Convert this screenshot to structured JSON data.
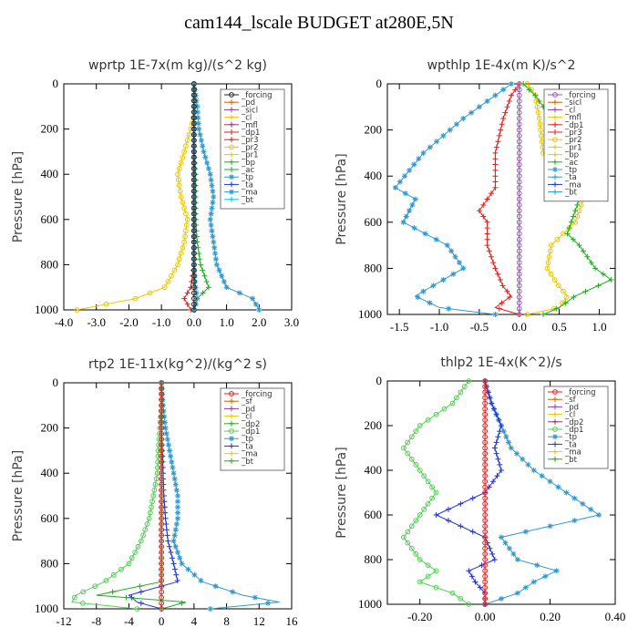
{
  "title": "cam144_lscale  BUDGET at280E,5N",
  "chart_data": [
    {
      "type": "line",
      "title": "wprtp   1E-7x(m kg)/(s^2 kg)",
      "ylabel": "Pressure [hPa]",
      "xlim": [
        -4,
        3
      ],
      "ylim": [
        1000,
        0
      ],
      "xticks": [
        "-4.0",
        "-3.0",
        "-2.0",
        "-1.0",
        "0.0",
        "1.0",
        "2.0",
        "3.0"
      ],
      "xtick_values": [
        -4,
        -3,
        -2,
        -1,
        0,
        1,
        2,
        3
      ],
      "yticks": [
        0,
        200,
        400,
        600,
        800,
        1000
      ],
      "legend_position": "top-right",
      "legend": [
        "_forcing",
        "_pd",
        "_sicl",
        "_cl",
        "_mfl",
        "_dp1",
        "_pr3",
        "_pr2",
        "_pr1",
        "_bp",
        "_ac",
        "_tp",
        "_ta",
        "_ma",
        "_bt"
      ],
      "series": [
        {
          "name": "_pr2",
          "color": "#e8c800",
          "marker": "circle",
          "x": [
            0,
            0.05,
            -0.1,
            -0.3,
            -0.5,
            -0.4,
            -0.2,
            -0.3,
            -0.5,
            -0.9,
            -1.8,
            -3.6
          ],
          "y": [
            0,
            100,
            200,
            300,
            400,
            500,
            600,
            700,
            800,
            900,
            950,
            1000
          ]
        },
        {
          "name": "_tp",
          "color": "#3399cc",
          "marker": "star",
          "x": [
            0,
            0.1,
            0.15,
            0.3,
            0.5,
            0.6,
            0.5,
            0.6,
            0.7,
            1.0,
            1.8,
            2.0
          ],
          "y": [
            0,
            100,
            200,
            300,
            400,
            500,
            600,
            700,
            800,
            900,
            950,
            1000
          ]
        },
        {
          "name": "_ac",
          "color": "#22aa22",
          "marker": "plus",
          "x": [
            0,
            0,
            0,
            0,
            0.05,
            0.05,
            0.05,
            0.1,
            0.2,
            0.45,
            0.1,
            0
          ],
          "y": [
            0,
            100,
            200,
            300,
            400,
            500,
            600,
            700,
            800,
            900,
            950,
            1000
          ]
        },
        {
          "name": "_dp1",
          "color": "#dd2222",
          "marker": "plus",
          "x": [
            0,
            0,
            0,
            0,
            0,
            0,
            0,
            0,
            0,
            -0.1,
            -0.3,
            -0.1
          ],
          "y": [
            0,
            100,
            200,
            300,
            400,
            500,
            600,
            700,
            800,
            900,
            950,
            1000
          ]
        },
        {
          "name": "_ma",
          "color": "#3399cc",
          "marker": "star",
          "x": [
            0,
            0,
            0,
            0,
            0,
            0,
            0,
            0,
            0,
            0.05,
            0.1,
            0
          ],
          "y": [
            0,
            100,
            200,
            300,
            400,
            500,
            600,
            700,
            800,
            900,
            950,
            1000
          ]
        },
        {
          "name": "_forcing",
          "color": "#222222",
          "marker": "circle",
          "x": [
            0,
            0,
            0,
            0,
            0,
            0,
            0,
            0,
            0,
            0,
            0,
            0
          ],
          "y": [
            0,
            100,
            200,
            300,
            400,
            500,
            600,
            700,
            800,
            900,
            950,
            1000
          ]
        }
      ]
    },
    {
      "type": "line",
      "title": "wpthlp   1E-4x(m K)/s^2",
      "ylabel": "Pressure [hPa]",
      "xlim": [
        -1.65,
        1.2
      ],
      "ylim": [
        1000,
        0
      ],
      "xticks": [
        "-1.5",
        "-1.0",
        "-0.5",
        "0.0",
        "0.5",
        "1.0"
      ],
      "xtick_values": [
        -1.5,
        -1.0,
        -0.5,
        0,
        0.5,
        1.0
      ],
      "yticks": [
        0,
        200,
        400,
        600,
        800,
        1000
      ],
      "legend_position": "top-right",
      "legend": [
        "_forcing",
        "_sicl",
        "_cl",
        "_mfl",
        "_dp1",
        "_pr3",
        "_pr2",
        "_pr1",
        "_bp",
        "_ac",
        "_tp",
        "_ta",
        "_ma",
        "_bt"
      ],
      "series": [
        {
          "name": "_tp",
          "color": "#3399cc",
          "marker": "star",
          "x": [
            -0.1,
            -0.3,
            -0.7,
            -1.2,
            -1.55,
            -1.3,
            -1.45,
            -0.9,
            -0.7,
            -1.1,
            -1.3,
            -1.0,
            -0.3
          ],
          "y": [
            0,
            50,
            150,
            300,
            450,
            500,
            600,
            700,
            800,
            880,
            920,
            970,
            1000
          ]
        },
        {
          "name": "_dp1",
          "color": "#dd2222",
          "marker": "plus",
          "x": [
            0,
            -0.1,
            -0.2,
            -0.3,
            -0.3,
            -0.5,
            -0.4,
            -0.4,
            -0.3,
            -0.2,
            -0.1,
            -0.3,
            0
          ],
          "y": [
            0,
            50,
            150,
            300,
            450,
            550,
            600,
            700,
            800,
            880,
            920,
            970,
            1000
          ]
        },
        {
          "name": "_pr2",
          "color": "#e8c800",
          "marker": "circle",
          "x": [
            0.1,
            0.2,
            0.25,
            0.3,
            0.45,
            0.85,
            0.7,
            0.4,
            0.35,
            0.5,
            0.6,
            0.5,
            0.1
          ],
          "y": [
            0,
            50,
            150,
            300,
            400,
            450,
            600,
            700,
            800,
            880,
            920,
            970,
            1000
          ]
        },
        {
          "name": "_ac",
          "color": "#22aa22",
          "marker": "plus",
          "x": [
            0.05,
            0.2,
            0.4,
            0.6,
            1.05,
            0.75,
            0.6,
            0.75,
            0.95,
            1.15,
            0.7,
            0.5,
            0.3
          ],
          "y": [
            0,
            50,
            150,
            300,
            400,
            500,
            650,
            700,
            800,
            850,
            920,
            970,
            1000
          ]
        },
        {
          "name": "_forcing",
          "color": "#9955bb",
          "marker": "circle",
          "x": [
            0,
            0,
            0,
            0,
            0,
            0,
            0,
            0,
            0,
            0,
            0,
            0,
            0
          ],
          "y": [
            0,
            50,
            150,
            300,
            400,
            500,
            600,
            700,
            800,
            850,
            920,
            970,
            1000
          ]
        }
      ]
    },
    {
      "type": "line",
      "title": "rtp2   1E-11x(kg^2)/(kg^2 s)",
      "ylabel": "Pressure [hPa]",
      "xlim": [
        -12,
        16
      ],
      "ylim": [
        1000,
        0
      ],
      "xticks": [
        "-12",
        "-8",
        "-4",
        "0",
        "4",
        "8",
        "12",
        "16"
      ],
      "xtick_values": [
        -12,
        -8,
        -4,
        0,
        4,
        8,
        12,
        16
      ],
      "yticks": [
        0,
        200,
        400,
        600,
        800,
        1000
      ],
      "legend_position": "top-right",
      "legend": [
        "_forcing",
        "_sf",
        "_pd",
        "_cl",
        "_dp2",
        "_dp1",
        "_tp",
        "_ta",
        "_ma",
        "_bt"
      ],
      "series": [
        {
          "name": "_dp1",
          "color": "#55cc55",
          "marker": "circle",
          "x": [
            0,
            0,
            -0.2,
            -0.4,
            -0.5,
            -1.0,
            -1.5,
            -2.5,
            -4.0,
            -7.0,
            -10.5,
            -11.0,
            -3.0
          ],
          "y": [
            0,
            100,
            200,
            300,
            400,
            500,
            600,
            700,
            800,
            880,
            940,
            970,
            1000
          ]
        },
        {
          "name": "_tp",
          "color": "#3399cc",
          "marker": "star",
          "x": [
            0,
            0.2,
            0.5,
            1.0,
            1.5,
            2.0,
            2.0,
            1.5,
            2.5,
            5.0,
            10.0,
            14.5,
            6.0
          ],
          "y": [
            0,
            100,
            200,
            300,
            400,
            500,
            600,
            700,
            800,
            880,
            940,
            970,
            1000
          ]
        },
        {
          "name": "_ta",
          "color": "#2233cc",
          "marker": "plus",
          "x": [
            0,
            0,
            0,
            0.1,
            0.2,
            0.3,
            0.5,
            0.8,
            1.5,
            2.0,
            -4.0,
            -3.0,
            0
          ],
          "y": [
            0,
            100,
            200,
            300,
            400,
            500,
            600,
            700,
            800,
            880,
            940,
            970,
            1000
          ]
        },
        {
          "name": "_dp2",
          "color": "#22aa22",
          "marker": "plus",
          "x": [
            0,
            0,
            0,
            0,
            0,
            0,
            0,
            0,
            0,
            0,
            -8.0,
            3.0,
            0
          ],
          "y": [
            0,
            100,
            200,
            300,
            400,
            500,
            600,
            700,
            800,
            880,
            940,
            970,
            1000
          ]
        },
        {
          "name": "_forcing",
          "color": "#dd2222",
          "marker": "circle",
          "x": [
            0,
            0,
            0,
            0,
            0,
            0,
            0,
            0,
            0,
            0,
            0,
            0,
            0
          ],
          "y": [
            0,
            100,
            200,
            300,
            400,
            500,
            600,
            700,
            800,
            880,
            940,
            970,
            1000
          ]
        }
      ]
    },
    {
      "type": "line",
      "title": "thlp2   1E-4x(K^2)/s",
      "ylabel": "Pressure [hPa]",
      "xlim": [
        -0.3,
        0.4
      ],
      "ylim": [
        1000,
        0
      ],
      "xticks": [
        "-0.20",
        "0.00",
        "0.20",
        "0.40"
      ],
      "xtick_values": [
        -0.2,
        0,
        0.2,
        0.4
      ],
      "yticks": [
        0,
        200,
        400,
        600,
        800,
        1000
      ],
      "legend_position": "top-right",
      "legend": [
        "_forcing",
        "_sf",
        "_pd",
        "_cl",
        "_dp2",
        "_dp1",
        "_tp",
        "_ta",
        "_ma",
        "_bt"
      ],
      "series": [
        {
          "name": "_dp1",
          "color": "#55cc55",
          "marker": "circle",
          "x": [
            -0.05,
            -0.1,
            -0.2,
            -0.25,
            -0.2,
            -0.15,
            -0.2,
            -0.25,
            -0.2,
            -0.15,
            -0.2,
            -0.1,
            -0.05
          ],
          "y": [
            0,
            100,
            200,
            300,
            400,
            500,
            600,
            700,
            800,
            850,
            900,
            950,
            1000
          ]
        },
        {
          "name": "_tp",
          "color": "#3399cc",
          "marker": "star",
          "x": [
            0,
            0.02,
            0.05,
            0.08,
            0.15,
            0.25,
            0.35,
            0.05,
            0.1,
            0.22,
            0.15,
            0.1,
            0
          ],
          "y": [
            0,
            100,
            200,
            300,
            400,
            500,
            600,
            700,
            800,
            850,
            900,
            950,
            1000
          ]
        },
        {
          "name": "_ta",
          "color": "#2233cc",
          "marker": "plus",
          "x": [
            0,
            0.02,
            0.05,
            0.03,
            0.05,
            0.0,
            -0.15,
            0.0,
            0.03,
            -0.05,
            -0.03,
            0.0,
            0
          ],
          "y": [
            0,
            100,
            200,
            300,
            400,
            500,
            600,
            700,
            800,
            850,
            900,
            950,
            1000
          ]
        },
        {
          "name": "_forcing",
          "color": "#dd2222",
          "marker": "circle",
          "x": [
            0,
            0,
            0,
            0,
            0,
            0,
            0,
            0,
            0,
            0,
            0,
            0,
            0
          ],
          "y": [
            0,
            100,
            200,
            300,
            400,
            500,
            600,
            700,
            800,
            850,
            900,
            950,
            1000
          ]
        }
      ]
    }
  ]
}
